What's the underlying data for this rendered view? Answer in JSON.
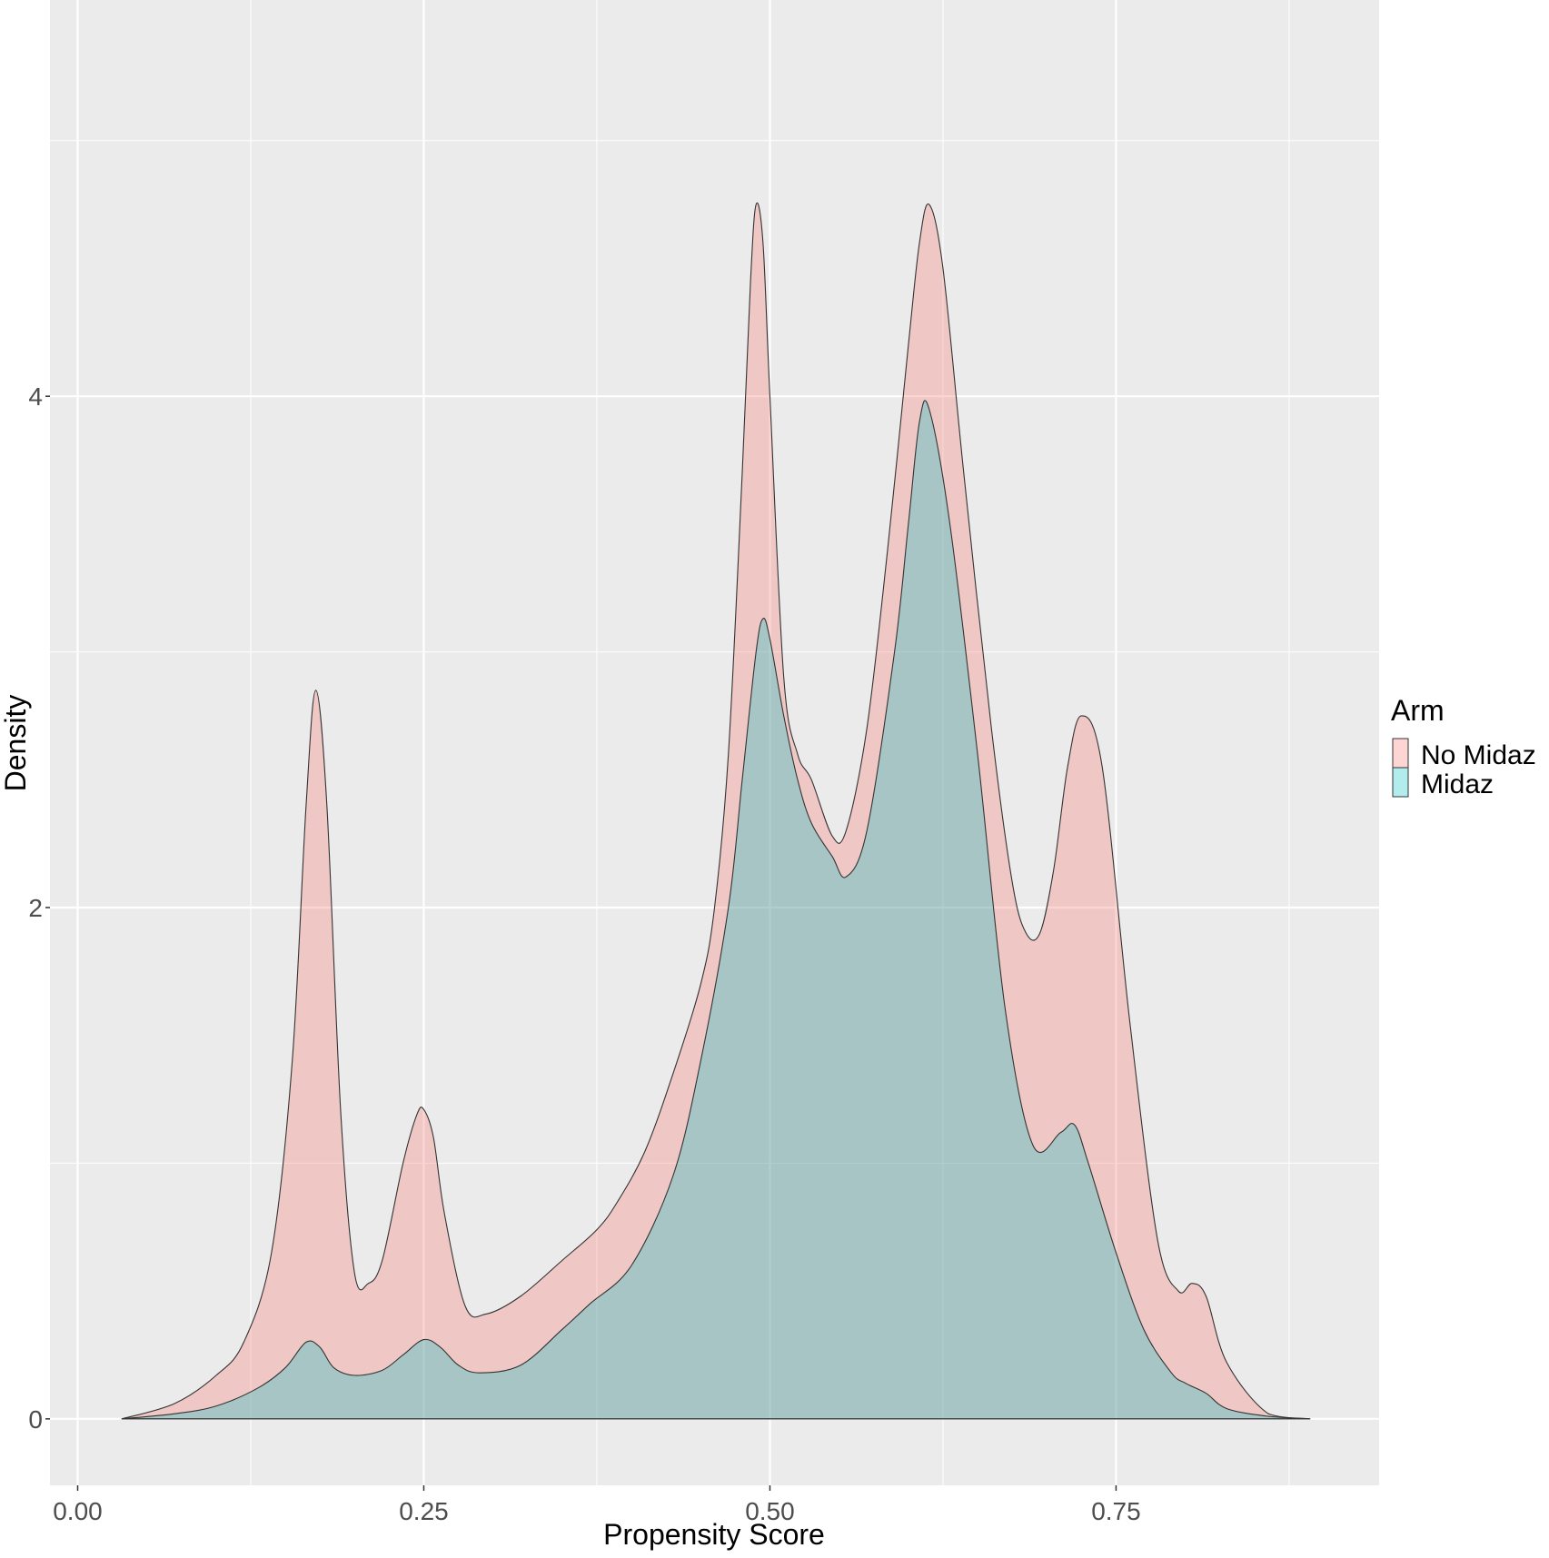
{
  "chart_data": {
    "type": "area",
    "subtype": "density",
    "title": "",
    "xlabel": "Propensity Score",
    "ylabel": "Density",
    "xlim": [
      -0.02,
      0.94
    ],
    "ylim": [
      -0.26,
      5.55
    ],
    "x_ticks": [
      0.0,
      0.25,
      0.5,
      0.75
    ],
    "x_tick_labels": [
      "0.00",
      "0.25",
      "0.50",
      "0.75"
    ],
    "y_ticks": [
      0,
      2,
      4
    ],
    "y_tick_labels": [
      "0",
      "2",
      "4"
    ],
    "grid": true,
    "panel_background": "#ebebeb",
    "grid_color": "#ffffff",
    "legend": {
      "title": "Arm",
      "position": "right",
      "entries": [
        {
          "label": "No Midaz",
          "color": "#f8766d"
        },
        {
          "label": "Midaz",
          "color": "#00bfc4"
        }
      ]
    },
    "fill_alpha": 0.3,
    "outline_color": "#333333",
    "series": [
      {
        "name": "No Midaz",
        "color": "#f8766d",
        "x": [
          0.032,
          0.07,
          0.1,
          0.12,
          0.14,
          0.155,
          0.165,
          0.172,
          0.18,
          0.19,
          0.2,
          0.21,
          0.22,
          0.235,
          0.245,
          0.25,
          0.257,
          0.265,
          0.28,
          0.295,
          0.32,
          0.35,
          0.375,
          0.39,
          0.41,
          0.43,
          0.45,
          0.46,
          0.47,
          0.48,
          0.486,
          0.49,
          0.495,
          0.5,
          0.51,
          0.52,
          0.53,
          0.545,
          0.555,
          0.57,
          0.585,
          0.6,
          0.608,
          0.615,
          0.625,
          0.64,
          0.66,
          0.675,
          0.685,
          0.695,
          0.705,
          0.715,
          0.725,
          0.74,
          0.76,
          0.78,
          0.795,
          0.805,
          0.815,
          0.83,
          0.86,
          0.89
        ],
        "y": [
          0.0,
          0.06,
          0.17,
          0.3,
          0.65,
          1.4,
          2.4,
          2.85,
          2.4,
          1.2,
          0.57,
          0.53,
          0.62,
          1.0,
          1.19,
          1.21,
          1.1,
          0.8,
          0.44,
          0.41,
          0.48,
          0.62,
          0.74,
          0.85,
          1.05,
          1.35,
          1.7,
          2.0,
          2.6,
          3.7,
          4.45,
          4.75,
          4.6,
          4.0,
          2.9,
          2.6,
          2.5,
          2.28,
          2.3,
          2.7,
          3.4,
          4.2,
          4.6,
          4.75,
          4.5,
          3.7,
          2.7,
          2.1,
          1.9,
          1.9,
          2.15,
          2.55,
          2.75,
          2.55,
          1.55,
          0.7,
          0.5,
          0.53,
          0.48,
          0.22,
          0.02,
          0.0
        ]
      },
      {
        "name": "Midaz",
        "color": "#00bfc4",
        "x": [
          0.032,
          0.07,
          0.1,
          0.13,
          0.15,
          0.165,
          0.175,
          0.185,
          0.2,
          0.22,
          0.235,
          0.25,
          0.262,
          0.275,
          0.29,
          0.32,
          0.35,
          0.37,
          0.4,
          0.43,
          0.45,
          0.47,
          0.48,
          0.49,
          0.495,
          0.5,
          0.51,
          0.52,
          0.53,
          0.545,
          0.555,
          0.57,
          0.59,
          0.6,
          0.608,
          0.615,
          0.63,
          0.65,
          0.67,
          0.69,
          0.71,
          0.72,
          0.73,
          0.75,
          0.77,
          0.79,
          0.8,
          0.815,
          0.83,
          0.86,
          0.89
        ],
        "y": [
          0.0,
          0.02,
          0.05,
          0.12,
          0.2,
          0.3,
          0.28,
          0.2,
          0.17,
          0.19,
          0.25,
          0.31,
          0.28,
          0.21,
          0.18,
          0.21,
          0.35,
          0.45,
          0.6,
          0.95,
          1.4,
          2.0,
          2.5,
          3.0,
          3.13,
          3.05,
          2.75,
          2.5,
          2.33,
          2.2,
          2.12,
          2.3,
          3.0,
          3.5,
          3.9,
          3.95,
          3.5,
          2.6,
          1.6,
          1.07,
          1.12,
          1.15,
          1.0,
          0.65,
          0.35,
          0.18,
          0.14,
          0.1,
          0.04,
          0.01,
          0.0
        ]
      }
    ]
  }
}
